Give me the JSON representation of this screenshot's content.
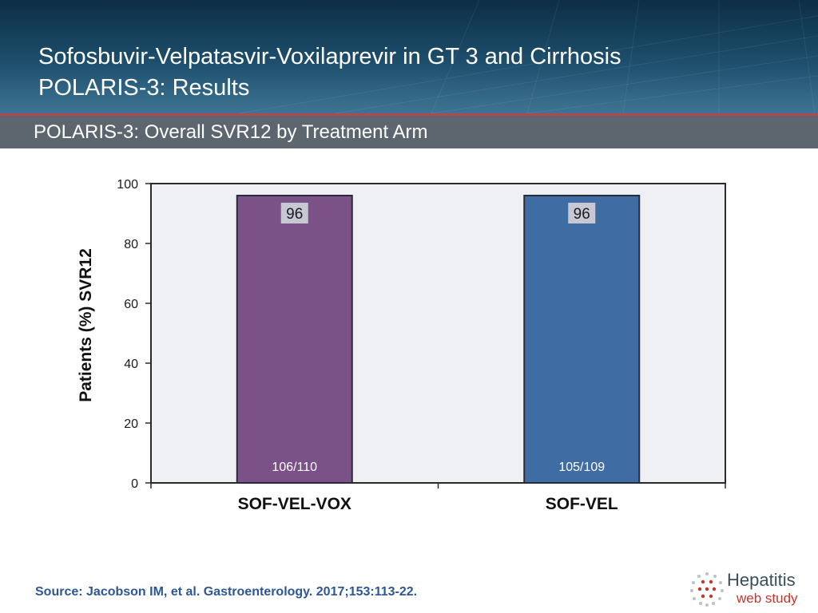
{
  "header": {
    "title_line1": "Sofosbuvir-Velpatasvir-Voxilaprevir in GT 3 and Cirrhosis",
    "title_line2": "POLARIS-3: Results",
    "subtitle": "POLARIS-3: Overall SVR12 by Treatment Arm"
  },
  "chart_data": {
    "type": "bar",
    "categories": [
      "SOF-VEL-VOX",
      "SOF-VEL"
    ],
    "values": [
      96,
      96
    ],
    "value_labels": [
      "96",
      "96"
    ],
    "count_labels": [
      "106/110",
      "105/109"
    ],
    "bar_colors": [
      "#7b5287",
      "#3f6ca3"
    ],
    "ylabel": "Patients (%) SVR12",
    "xlabel": "",
    "ylim": [
      0,
      100
    ],
    "yticks": [
      0,
      20,
      40,
      60,
      80,
      100
    ],
    "grid": false,
    "legend": "none"
  },
  "footer": {
    "source": "Source: Jacobson IM, et al. Gastroenterology. 2017;153:113-22.",
    "logo_line1": "Hepatitis",
    "logo_line2": "web study"
  }
}
